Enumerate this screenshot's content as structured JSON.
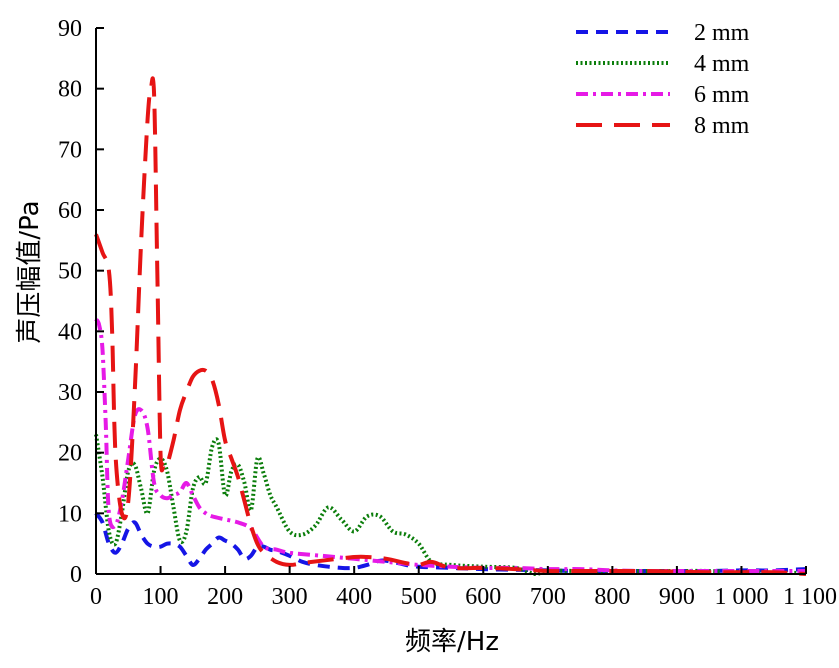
{
  "chart_data": {
    "type": "line",
    "xlabel": "频率/Hz",
    "ylabel": "声压幅值/Pa",
    "xlim": [
      0,
      1100
    ],
    "ylim": [
      0,
      90
    ],
    "x_ticks": [
      0,
      100,
      200,
      300,
      400,
      500,
      600,
      700,
      800,
      900,
      1000,
      1100
    ],
    "x_tick_labels": [
      "0",
      "100",
      "200",
      "300",
      "400",
      "500",
      "600",
      "700",
      "800",
      "900",
      "1 000",
      "1 100"
    ],
    "y_ticks": [
      0,
      10,
      20,
      30,
      40,
      50,
      60,
      70,
      80,
      90
    ],
    "y_tick_labels": [
      "0",
      "10",
      "20",
      "30",
      "40",
      "50",
      "60",
      "70",
      "80",
      "90"
    ],
    "grid": false,
    "legend_position": "top-right",
    "series": [
      {
        "name": "2 mm",
        "color": "#1515e6",
        "dash": "dashed",
        "x": [
          0,
          10,
          20,
          30,
          40,
          50,
          60,
          70,
          80,
          90,
          100,
          110,
          120,
          130,
          140,
          150,
          160,
          170,
          180,
          190,
          200,
          210,
          220,
          230,
          240,
          250,
          260,
          270,
          280,
          300,
          320,
          340,
          360,
          380,
          400,
          420,
          440,
          460,
          480,
          500,
          550,
          600,
          650,
          700,
          750,
          800,
          850,
          900,
          950,
          1000,
          1050,
          1100
        ],
        "y": [
          10,
          8.5,
          5,
          3.5,
          5,
          7.5,
          8.5,
          6.5,
          5,
          4.5,
          4.5,
          5,
          5,
          4.5,
          3,
          1.5,
          2.5,
          4,
          5,
          6,
          5.5,
          5,
          4,
          2.5,
          3,
          4.5,
          4.5,
          4,
          3.8,
          3,
          2,
          1.5,
          1.2,
          1,
          1,
          1.5,
          2.2,
          2,
          1.5,
          1.2,
          1,
          0.8,
          0.7,
          0.6,
          0.5,
          0.5,
          0.5,
          0.5,
          0.5,
          0.6,
          0.6,
          0.8
        ]
      },
      {
        "name": "4 mm",
        "color": "#0a7d0a",
        "dash": "dotted",
        "x": [
          0,
          10,
          20,
          30,
          40,
          50,
          60,
          70,
          80,
          90,
          100,
          110,
          120,
          130,
          140,
          150,
          160,
          170,
          180,
          190,
          200,
          210,
          220,
          230,
          240,
          250,
          260,
          270,
          280,
          300,
          320,
          340,
          360,
          380,
          400,
          420,
          440,
          460,
          480,
          500,
          520,
          550,
          600,
          650,
          680,
          700,
          750,
          800,
          850,
          900,
          950,
          1000,
          1050,
          1100
        ],
        "y": [
          23,
          16,
          7,
          5,
          10,
          17,
          18,
          14,
          10,
          17,
          19,
          17,
          11,
          5.5,
          7,
          14,
          16,
          15,
          21,
          21.5,
          13,
          17,
          18,
          15,
          10.5,
          19,
          16.5,
          13,
          11,
          7,
          6.5,
          8,
          11,
          9,
          7,
          9.5,
          9.5,
          7,
          6.5,
          5,
          2,
          1.5,
          1.2,
          1,
          0,
          0.5,
          0.5,
          0.5,
          0.5,
          0.5,
          0.5,
          0.3,
          0.2,
          0.2
        ]
      },
      {
        "name": "6 mm",
        "color": "#e61ae6",
        "dash": "dash-dot",
        "x": [
          0,
          5,
          10,
          15,
          20,
          30,
          40,
          50,
          60,
          70,
          80,
          90,
          100,
          110,
          120,
          130,
          140,
          150,
          160,
          170,
          180,
          200,
          220,
          240,
          260,
          280,
          300,
          350,
          400,
          450,
          500,
          550,
          600,
          650,
          700,
          750,
          800,
          850,
          900,
          950,
          1000,
          1050,
          1100
        ],
        "y": [
          42,
          41,
          37,
          25,
          10,
          8,
          12,
          19,
          26,
          27,
          24,
          15,
          13,
          12.5,
          13,
          13.5,
          15,
          13,
          11,
          10,
          9.5,
          9,
          8.5,
          7.5,
          4.5,
          4,
          3.5,
          3,
          2.5,
          2,
          1.5,
          1.2,
          1,
          1,
          0.8,
          0.8,
          0.6,
          0.5,
          0.5,
          0.5,
          0.5,
          0.5,
          0.5
        ]
      },
      {
        "name": "8 mm",
        "color": "#e61414",
        "dash": "long-dashed",
        "x": [
          0,
          10,
          20,
          25,
          30,
          40,
          50,
          60,
          70,
          80,
          85,
          90,
          95,
          100,
          105,
          110,
          120,
          130,
          140,
          150,
          160,
          170,
          180,
          190,
          200,
          210,
          220,
          230,
          240,
          250,
          260,
          280,
          300,
          320,
          350,
          400,
          420,
          450,
          480,
          500,
          520,
          550,
          600,
          650,
          700,
          750,
          800,
          850,
          900,
          950,
          1000,
          1050,
          1100
        ],
        "y": [
          56,
          53,
          50,
          40,
          20,
          10,
          12,
          30,
          55,
          75,
          80,
          79,
          50,
          20,
          18,
          18,
          22,
          27,
          30,
          32.5,
          33.5,
          33.5,
          32,
          28,
          22,
          19,
          16,
          12,
          8,
          5,
          3.5,
          2,
          1.5,
          1.8,
          2.2,
          2.8,
          2.8,
          2.5,
          1.8,
          1.5,
          2,
          1,
          1,
          0.8,
          0.5,
          0.5,
          0.5,
          0.5,
          0.4,
          0.3,
          0.3,
          0.3,
          0
        ]
      }
    ]
  }
}
